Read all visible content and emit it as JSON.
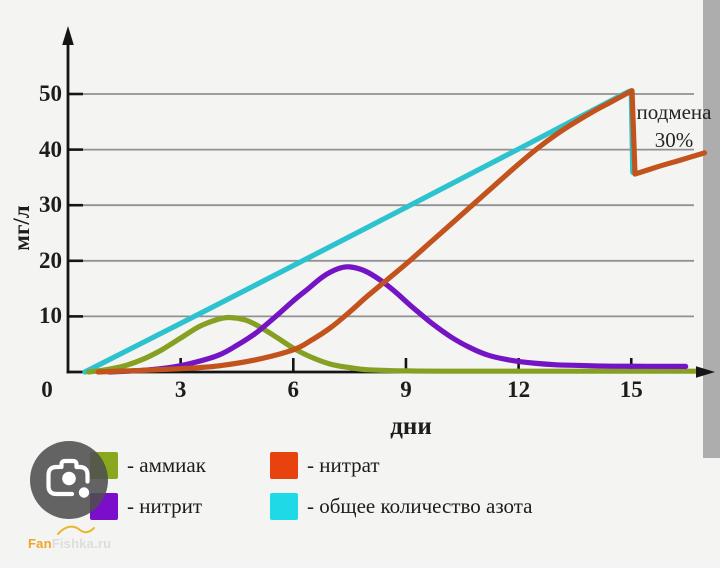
{
  "page": {
    "background_color": "#f4f4f2",
    "right_strip_color": "#adadad"
  },
  "chart_data": {
    "type": "line",
    "title": "",
    "xlabel": "дни",
    "ylabel": "мг/л",
    "x_ticks": [
      0,
      3,
      6,
      9,
      12,
      15
    ],
    "y_ticks": [
      10,
      20,
      30,
      40,
      50
    ],
    "xlim": [
      0,
      17.3
    ],
    "ylim": [
      0,
      55
    ],
    "grid": true,
    "legend_position": "bottom",
    "annotation": {
      "line1": "подмена",
      "line2": "30%",
      "anchor_day": 15,
      "anchor_value": 44
    },
    "axis_color": "#151515",
    "grid_color": "#919191",
    "series": [
      {
        "name": "total-nitrogen",
        "label": "общее количество азота",
        "color": "#2cc3cf",
        "segments": [
          [
            [
              0.45,
              0
            ],
            [
              4,
              12.2
            ],
            [
              8,
              26.1
            ],
            [
              12,
              40.1
            ],
            [
              14.6,
              49.3
            ],
            [
              15.0,
              50.6
            ]
          ],
          [
            [
              15.0,
              50.6
            ],
            [
              15.04,
              35.9
            ]
          ]
        ]
      },
      {
        "name": "ammonia",
        "label": "аммиак",
        "color": "#85a023",
        "segments": [
          [
            [
              0.55,
              0
            ],
            [
              1,
              0.4
            ],
            [
              1.5,
              1.1
            ],
            [
              2,
              2.3
            ],
            [
              2.5,
              4.0
            ],
            [
              3,
              6.1
            ],
            [
              3.5,
              8.2
            ],
            [
              4,
              9.5
            ],
            [
              4.3,
              9.8
            ],
            [
              4.7,
              9.4
            ],
            [
              5,
              8.5
            ],
            [
              5.5,
              6.5
            ],
            [
              6,
              4.3
            ],
            [
              6.5,
              2.6
            ],
            [
              7,
              1.4
            ],
            [
              7.5,
              0.8
            ],
            [
              8,
              0.4
            ],
            [
              9,
              0.2
            ],
            [
              10,
              0.15
            ],
            [
              12,
              0.15
            ],
            [
              14,
              0.15
            ],
            [
              16.7,
              0.15
            ]
          ]
        ]
      },
      {
        "name": "nitrite",
        "label": "нитрит",
        "color": "#7414c4",
        "segments": [
          [
            [
              1.1,
              0
            ],
            [
              2,
              0.3
            ],
            [
              2.7,
              0.8
            ],
            [
              3.3,
              1.6
            ],
            [
              4,
              3.0
            ],
            [
              4.5,
              4.8
            ],
            [
              5,
              7.0
            ],
            [
              5.5,
              9.8
            ],
            [
              6,
              12.8
            ],
            [
              6.4,
              15.0
            ],
            [
              6.8,
              17.2
            ],
            [
              7.2,
              18.6
            ],
            [
              7.5,
              18.9
            ],
            [
              7.9,
              18.2
            ],
            [
              8.3,
              16.6
            ],
            [
              8.7,
              14.5
            ],
            [
              9.2,
              11.5
            ],
            [
              9.7,
              8.7
            ],
            [
              10.2,
              6.3
            ],
            [
              10.7,
              4.4
            ],
            [
              11.2,
              3.0
            ],
            [
              11.8,
              2.1
            ],
            [
              12.4,
              1.6
            ],
            [
              13,
              1.3
            ],
            [
              13.5,
              1.2
            ],
            [
              14.5,
              1.05
            ],
            [
              16.45,
              1.0
            ]
          ]
        ]
      },
      {
        "name": "nitrate",
        "label": "нитрат",
        "color": "#c2531c",
        "segments": [
          [
            [
              0.8,
              0
            ],
            [
              2,
              0.3
            ],
            [
              3,
              0.6
            ],
            [
              4,
              1.1
            ],
            [
              5,
              2.2
            ],
            [
              6,
              4.0
            ],
            [
              6.5,
              5.8
            ],
            [
              7,
              8.0
            ],
            [
              7.5,
              10.8
            ],
            [
              8,
              13.8
            ],
            [
              8.5,
              16.6
            ],
            [
              9,
              19.4
            ],
            [
              9.5,
              22.4
            ],
            [
              10,
              25.4
            ],
            [
              10.5,
              28.4
            ],
            [
              11,
              31.4
            ],
            [
              11.5,
              34.4
            ],
            [
              12,
              37.4
            ],
            [
              12.5,
              40.2
            ],
            [
              13,
              42.7
            ],
            [
              13.5,
              44.9
            ],
            [
              14,
              46.9
            ],
            [
              14.5,
              48.7
            ],
            [
              15.02,
              50.6
            ]
          ],
          [
            [
              15.1,
              35.6
            ],
            [
              15.7,
              36.9
            ],
            [
              16.3,
              38.1
            ],
            [
              16.95,
              39.4
            ]
          ]
        ]
      }
    ]
  },
  "legend": {
    "items": [
      {
        "name": "ammonia",
        "label": "- аммиак",
        "swatch_color": "#8aa81e"
      },
      {
        "name": "nitrite",
        "label": "- нитрит",
        "swatch_color": "#7a0ecb"
      },
      {
        "name": "nitrate",
        "label": "- нитрат",
        "swatch_color": "#e8420e"
      },
      {
        "name": "total-nitrogen",
        "label": "- общее количество азота",
        "swatch_color": "#20d9e6"
      }
    ]
  },
  "watermark": {
    "prefix": "Fan",
    "suffix": "Fishka.ru"
  }
}
